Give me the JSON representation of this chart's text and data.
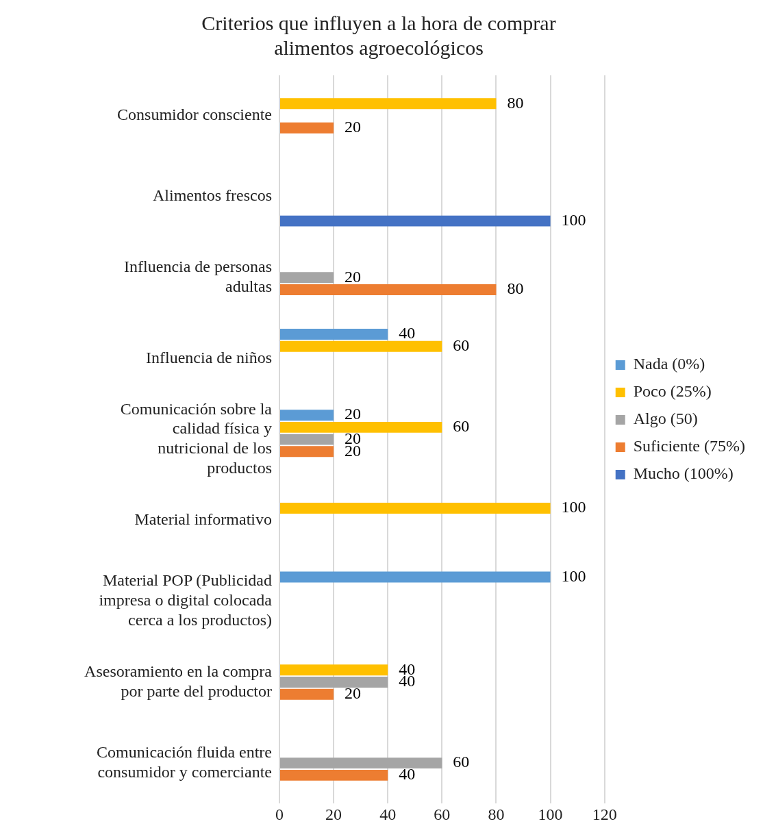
{
  "chart_data": {
    "type": "bar",
    "orientation": "horizontal",
    "title": "Criterios que influyen a la hora de comprar alimentos agroecológicos",
    "categories": [
      "Consumidor consciente",
      "Alimentos frescos",
      "Influencia de personas adultas",
      "Influencia de niños",
      "Comunicación  sobre la calidad física y nutricional de los productos",
      "Material informativo",
      "Material POP (Publicidad impresa o digital colocada cerca a los productos)",
      "Asesoramiento en la  compra por parte del productor",
      "Comunicación fluida entre consumidor y comerciante"
    ],
    "series": [
      {
        "name": "Nada (0%)",
        "color": "#5b9bd5",
        "values": [
          null,
          null,
          null,
          40,
          20,
          null,
          100,
          null,
          null
        ]
      },
      {
        "name": "Poco (25%)",
        "color": "#ffc000",
        "values": [
          80,
          null,
          null,
          60,
          60,
          100,
          null,
          40,
          null
        ]
      },
      {
        "name": "Algo (50)",
        "color": "#a5a5a5",
        "values": [
          null,
          null,
          20,
          null,
          20,
          null,
          null,
          40,
          60
        ]
      },
      {
        "name": "Suficiente (75%)",
        "color": "#ed7d31",
        "values": [
          20,
          null,
          80,
          null,
          20,
          null,
          null,
          20,
          40
        ]
      },
      {
        "name": "Mucho (100%)",
        "color": "#4472c4",
        "values": [
          null,
          100,
          null,
          null,
          null,
          null,
          null,
          null,
          null
        ]
      }
    ],
    "xlim": [
      0,
      120
    ],
    "xticks": [
      0,
      20,
      40,
      60,
      80,
      100,
      120
    ],
    "grid": "x",
    "legend": "right",
    "data_labels": true
  }
}
